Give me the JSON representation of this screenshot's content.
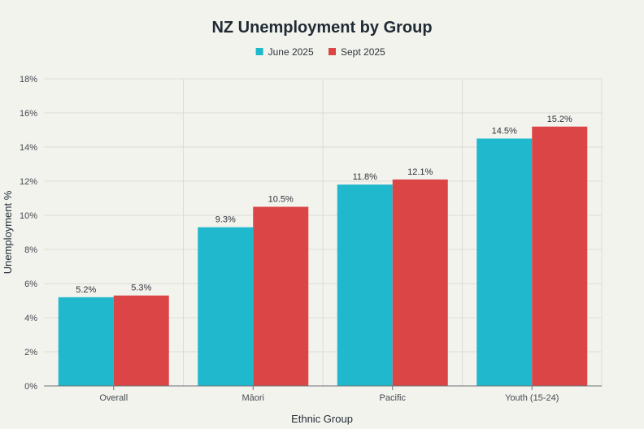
{
  "chart_data": {
    "type": "bar",
    "title": "NZ Unemployment by Group",
    "xlabel": "Ethnic Group",
    "ylabel": "Unemployment %",
    "categories": [
      "Overall",
      "Māori",
      "Pacific",
      "Youth (15-24)"
    ],
    "series": [
      {
        "name": "June 2025",
        "values": [
          5.2,
          9.3,
          11.8,
          14.5
        ],
        "labels": [
          "5.2%",
          "9.3%",
          "11.8%",
          "14.5%"
        ],
        "color": "#1fb8cd"
      },
      {
        "name": "Sept 2025",
        "values": [
          5.3,
          10.5,
          12.1,
          15.2
        ],
        "labels": [
          "5.3%",
          "10.5%",
          "12.1%",
          "15.2%"
        ],
        "color": "#db4545"
      }
    ],
    "ylim": [
      0,
      18
    ],
    "yticks": [
      0,
      2,
      4,
      6,
      8,
      10,
      12,
      14,
      16,
      18
    ],
    "ytick_labels": [
      "0%",
      "2%",
      "4%",
      "6%",
      "8%",
      "10%",
      "12%",
      "14%",
      "16%",
      "18%"
    ],
    "grid": true,
    "legend_position": "top-center"
  }
}
